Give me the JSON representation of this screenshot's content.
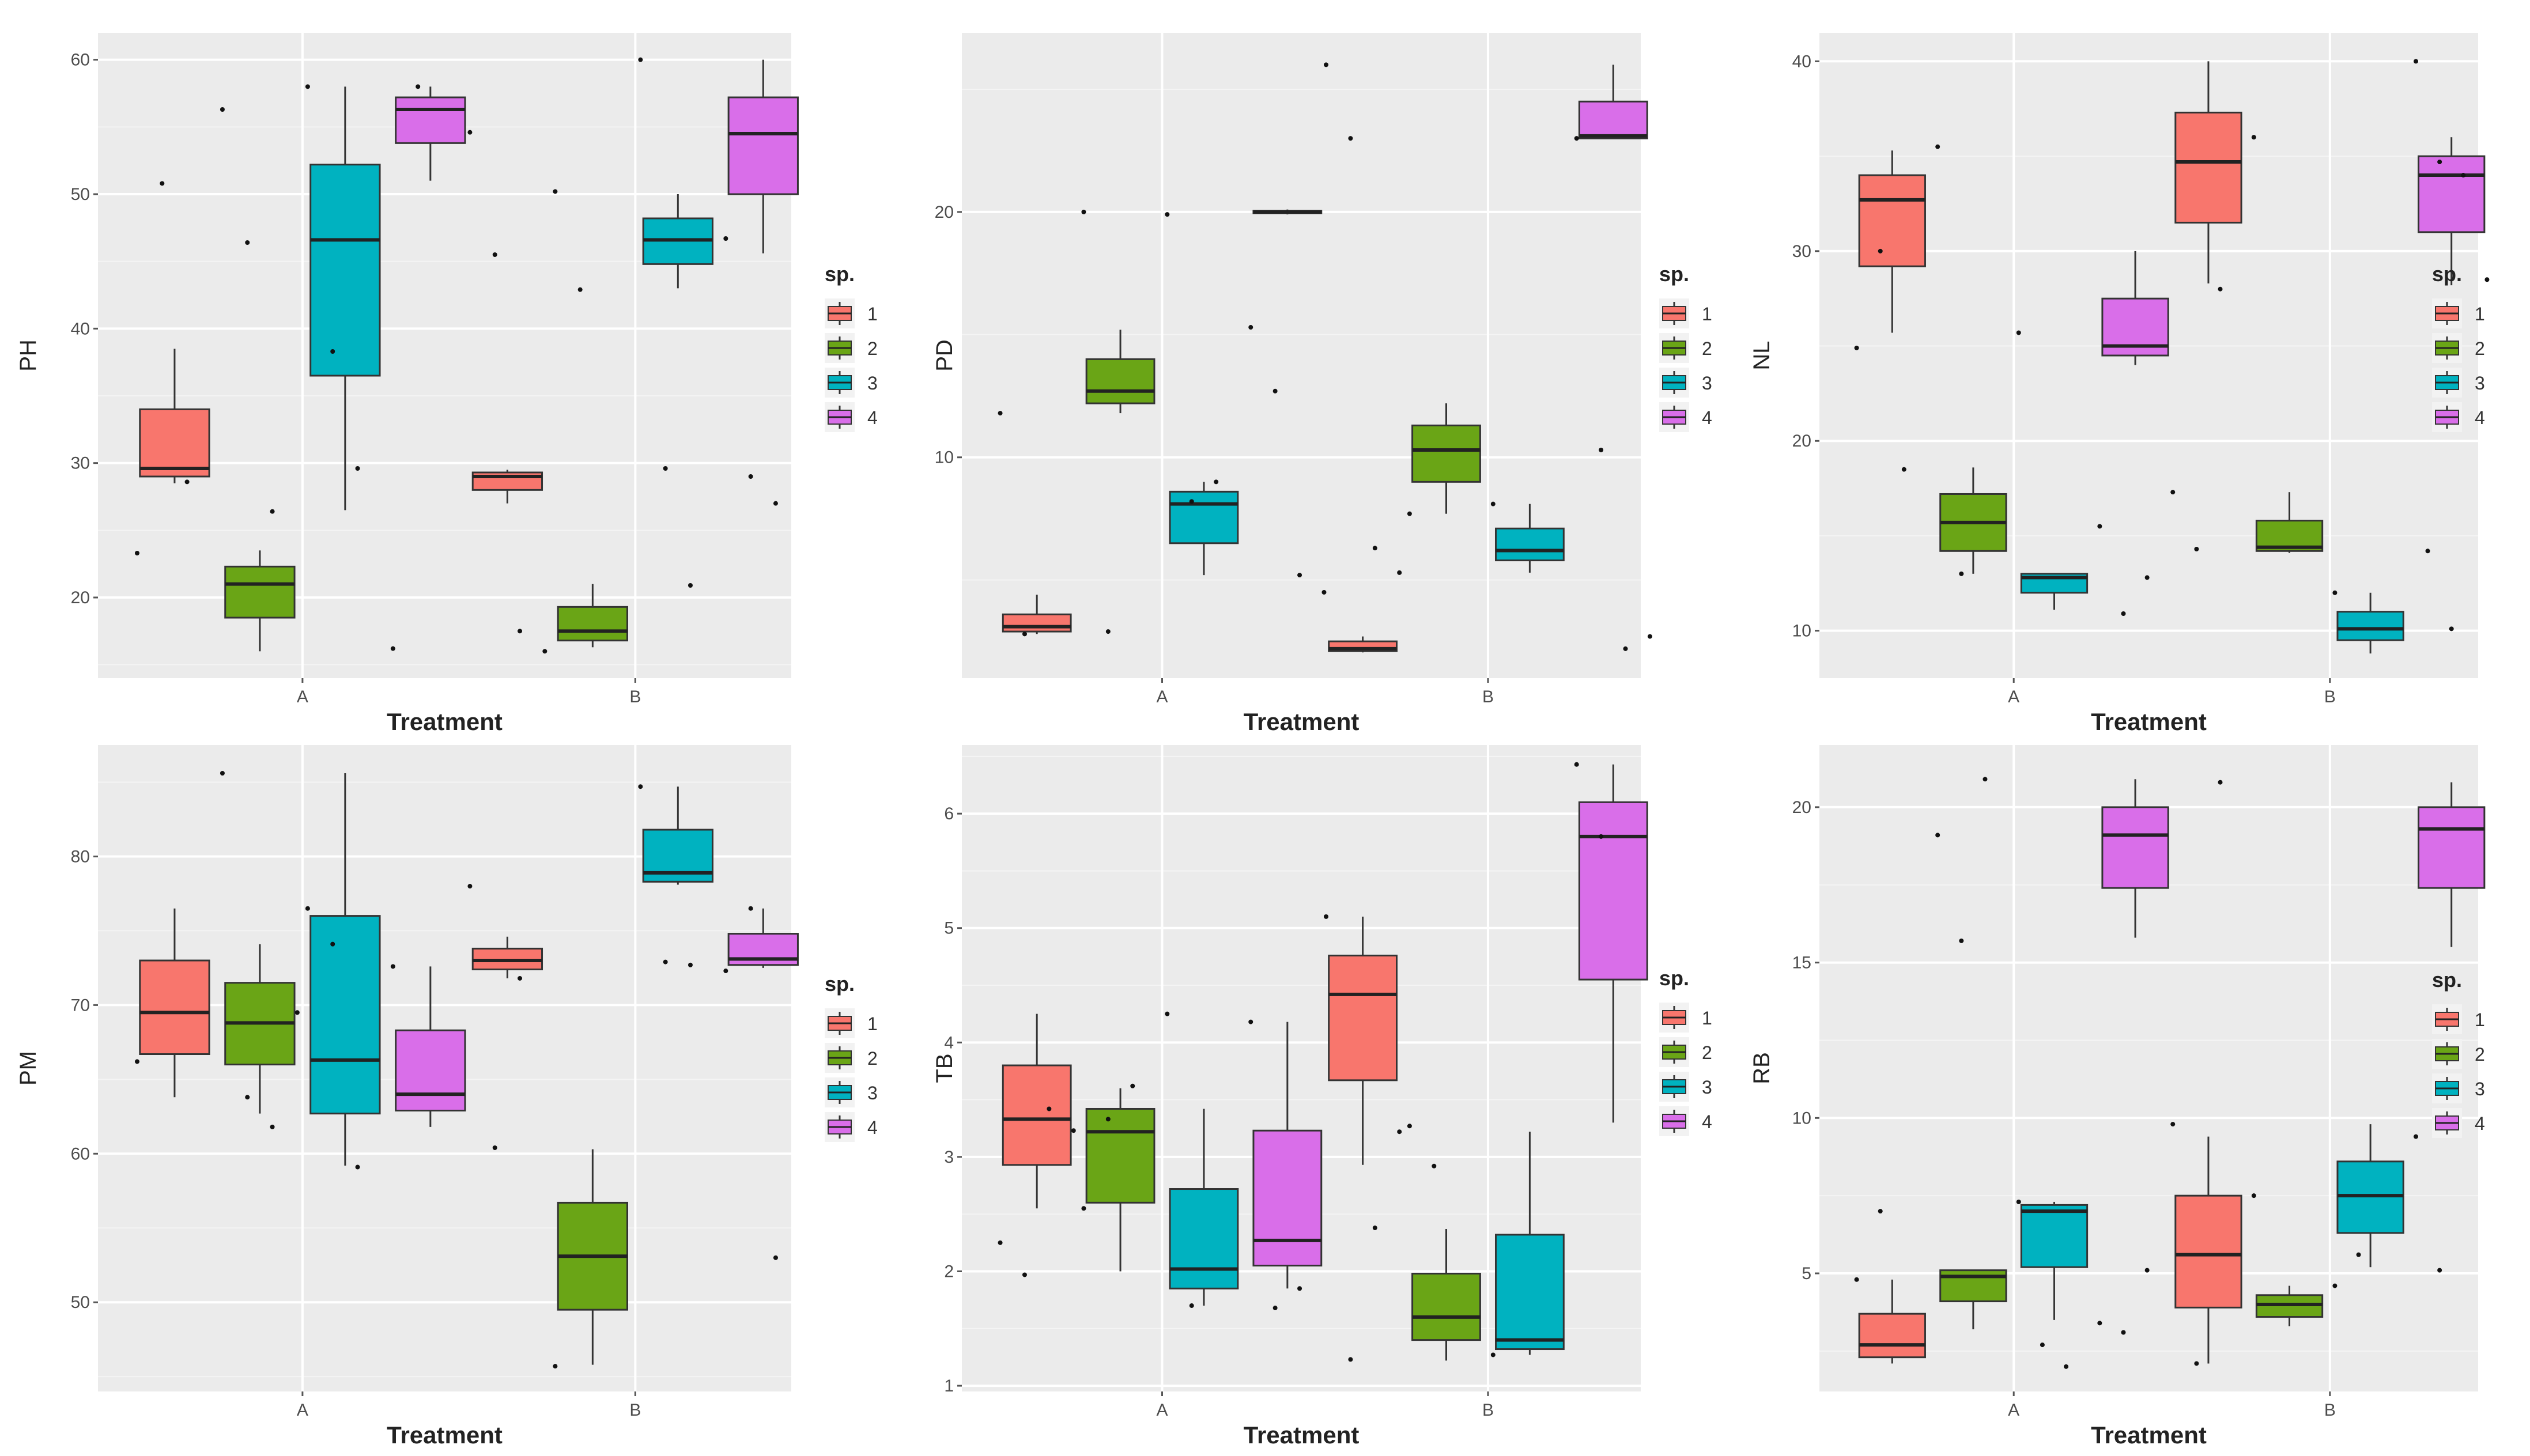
{
  "chart_data": [
    {
      "type": "box",
      "ylabel": "PH",
      "xlabel": "Treatment",
      "categories": [
        "A",
        "B"
      ],
      "ylim": [
        14,
        62
      ],
      "yticks": [
        20,
        30,
        40,
        50,
        60
      ],
      "legend": {
        "title": "sp.",
        "position": "right",
        "labels": [
          "1",
          "2",
          "3",
          "4"
        ]
      },
      "boxes": [
        {
          "treatment": "A",
          "species": "1",
          "min": 28.5,
          "q1": 29,
          "median": 29.6,
          "q3": 34,
          "max": 38.5,
          "points": [
            23.3,
            50.8,
            28.6
          ]
        },
        {
          "treatment": "A",
          "species": "2",
          "min": 16,
          "q1": 18.5,
          "median": 21,
          "q3": 22.3,
          "max": 23.5,
          "points": [
            56.3,
            46.4,
            26.4
          ]
        },
        {
          "treatment": "A",
          "species": "3",
          "min": 26.5,
          "q1": 36.5,
          "median": 46.6,
          "q3": 52.2,
          "max": 58,
          "points": [
            58,
            38.3,
            29.6
          ]
        },
        {
          "treatment": "A",
          "species": "4",
          "min": 51,
          "q1": 53.8,
          "median": 56.3,
          "q3": 57.2,
          "max": 58,
          "points": [
            16.2,
            58
          ]
        },
        {
          "treatment": "B",
          "species": "1",
          "min": 27,
          "q1": 28,
          "median": 29,
          "q3": 29.3,
          "max": 29.5,
          "points": [
            54.6,
            45.5,
            17.5,
            16
          ]
        },
        {
          "treatment": "B",
          "species": "2",
          "min": 16.3,
          "q1": 16.8,
          "median": 17.5,
          "q3": 19.3,
          "max": 21,
          "points": [
            50.2,
            42.9
          ]
        },
        {
          "treatment": "B",
          "species": "3",
          "min": 43,
          "q1": 44.8,
          "median": 46.6,
          "q3": 48.2,
          "max": 50,
          "points": [
            60,
            29.6,
            20.9
          ]
        },
        {
          "treatment": "B",
          "species": "4",
          "min": 45.6,
          "q1": 50,
          "median": 54.5,
          "q3": 57.2,
          "max": 60,
          "points": [
            46.7,
            29,
            27
          ]
        }
      ]
    },
    {
      "type": "box",
      "ylabel": "PD",
      "xlabel": "Treatment",
      "categories": [
        "A",
        "B"
      ],
      "ylim": [
        1,
        27.3
      ],
      "yticks": [
        10,
        20
      ],
      "legend": {
        "title": "sp.",
        "position": "right",
        "labels": [
          "1",
          "2",
          "3",
          "4"
        ]
      },
      "boxes": [
        {
          "treatment": "A",
          "species": "1",
          "min": 2.8,
          "q1": 2.9,
          "median": 3.1,
          "q3": 3.6,
          "max": 4.4,
          "points": [
            11.8,
            2.8
          ]
        },
        {
          "treatment": "A",
          "species": "2",
          "min": 11.8,
          "q1": 12.2,
          "median": 12.7,
          "q3": 14,
          "max": 15.2,
          "points": [
            20,
            2.9
          ]
        },
        {
          "treatment": "A",
          "species": "3",
          "min": 5.2,
          "q1": 6.5,
          "median": 8.1,
          "q3": 8.6,
          "max": 9,
          "points": [
            19.9,
            8.2,
            9
          ]
        },
        {
          "treatment": "A",
          "species": "4",
          "min": 19.9,
          "q1": 19.95,
          "median": 20,
          "q3": 20.05,
          "max": 20.1,
          "points": [
            15.3,
            12.7,
            5.2,
            4.5
          ]
        },
        {
          "treatment": "B",
          "species": "1",
          "min": 2.05,
          "q1": 2.1,
          "median": 2.2,
          "q3": 2.5,
          "max": 2.7,
          "points": [
            26,
            23,
            6.3,
            5.3
          ]
        },
        {
          "treatment": "B",
          "species": "2",
          "min": 7.7,
          "q1": 9,
          "median": 10.3,
          "q3": 11.3,
          "max": 12.2,
          "points": [
            7.7
          ]
        },
        {
          "treatment": "B",
          "species": "3",
          "min": 5.3,
          "q1": 5.8,
          "median": 6.2,
          "q3": 7.1,
          "max": 8.1,
          "points": [
            8.1
          ]
        },
        {
          "treatment": "B",
          "species": "4",
          "min": 23,
          "q1": 23,
          "median": 23.1,
          "q3": 24.5,
          "max": 26,
          "points": [
            23,
            10.3,
            2.2,
            2.7
          ]
        }
      ]
    },
    {
      "type": "box",
      "ylabel": "NL",
      "xlabel": "Treatment",
      "categories": [
        "A",
        "B"
      ],
      "ylim": [
        7.5,
        41.5
      ],
      "yticks": [
        10,
        20,
        30,
        40
      ],
      "legend": {
        "title": "sp.",
        "position": "right",
        "labels": [
          "1",
          "2",
          "3",
          "4"
        ]
      },
      "boxes": [
        {
          "treatment": "A",
          "species": "1",
          "min": 25.7,
          "q1": 29.2,
          "median": 32.7,
          "q3": 34,
          "max": 35.3,
          "points": [
            24.9,
            30,
            18.5
          ]
        },
        {
          "treatment": "A",
          "species": "2",
          "min": 13,
          "q1": 14.2,
          "median": 15.7,
          "q3": 17.2,
          "max": 18.6,
          "points": [
            35.5,
            13
          ]
        },
        {
          "treatment": "A",
          "species": "3",
          "min": 11.1,
          "q1": 12,
          "median": 12.8,
          "q3": 13,
          "max": 13,
          "points": [
            25.7
          ]
        },
        {
          "treatment": "A",
          "species": "4",
          "min": 24,
          "q1": 24.5,
          "median": 25,
          "q3": 27.5,
          "max": 30,
          "points": [
            15.5,
            10.9,
            12.8
          ]
        },
        {
          "treatment": "B",
          "species": "1",
          "min": 28.3,
          "q1": 31.5,
          "median": 34.7,
          "q3": 37.3,
          "max": 40,
          "points": [
            17.3,
            14.3,
            28
          ]
        },
        {
          "treatment": "B",
          "species": "2",
          "min": 14.1,
          "q1": 14.2,
          "median": 14.4,
          "q3": 15.8,
          "max": 17.3,
          "points": [
            36
          ]
        },
        {
          "treatment": "B",
          "species": "3",
          "min": 8.8,
          "q1": 9.5,
          "median": 10.1,
          "q3": 11,
          "max": 12,
          "points": [
            12
          ]
        },
        {
          "treatment": "B",
          "species": "4",
          "min": 28.2,
          "q1": 31,
          "median": 34,
          "q3": 35,
          "max": 36,
          "points": [
            40,
            34.7,
            34,
            28.5,
            14.2,
            10.1
          ]
        }
      ]
    },
    {
      "type": "box",
      "ylabel": "PM",
      "xlabel": "Treatment",
      "categories": [
        "A",
        "B"
      ],
      "ylim": [
        44,
        87.5
      ],
      "yticks": [
        50,
        60,
        70,
        80
      ],
      "legend": {
        "title": "sp.",
        "position": "right",
        "labels": [
          "1",
          "2",
          "3",
          "4"
        ]
      },
      "boxes": [
        {
          "treatment": "A",
          "species": "1",
          "min": 63.8,
          "q1": 66.7,
          "median": 69.5,
          "q3": 73,
          "max": 76.5,
          "points": [
            66.2
          ]
        },
        {
          "treatment": "A",
          "species": "2",
          "min": 62.7,
          "q1": 66,
          "median": 68.8,
          "q3": 71.5,
          "max": 74.1,
          "points": [
            85.6,
            63.8,
            61.8,
            69.5
          ]
        },
        {
          "treatment": "A",
          "species": "3",
          "min": 59.2,
          "q1": 62.7,
          "median": 66.3,
          "q3": 76,
          "max": 85.6,
          "points": [
            76.5,
            74.1,
            59.1
          ]
        },
        {
          "treatment": "A",
          "species": "4",
          "min": 61.8,
          "q1": 62.9,
          "median": 64,
          "q3": 68.3,
          "max": 72.6,
          "points": [
            72.6
          ]
        },
        {
          "treatment": "B",
          "species": "1",
          "min": 71.8,
          "q1": 72.4,
          "median": 73,
          "q3": 73.8,
          "max": 74.6,
          "points": [
            78,
            60.4,
            71.8
          ]
        },
        {
          "treatment": "B",
          "species": "2",
          "min": 45.8,
          "q1": 49.5,
          "median": 53.1,
          "q3": 56.7,
          "max": 60.3,
          "points": [
            45.7
          ]
        },
        {
          "treatment": "B",
          "species": "3",
          "min": 78.1,
          "q1": 78.3,
          "median": 78.9,
          "q3": 81.8,
          "max": 84.7,
          "points": [
            84.7,
            72.9,
            72.7
          ]
        },
        {
          "treatment": "B",
          "species": "4",
          "min": 72.5,
          "q1": 72.7,
          "median": 73.1,
          "q3": 74.8,
          "max": 76.5,
          "points": [
            72.3,
            76.5,
            53
          ]
        }
      ]
    },
    {
      "type": "box",
      "ylabel": "TB",
      "xlabel": "Treatment",
      "categories": [
        "A",
        "B"
      ],
      "ylim": [
        0.95,
        6.6
      ],
      "yticks": [
        1,
        2,
        3,
        4,
        5,
        6
      ],
      "legend": {
        "title": "sp.",
        "position": "right",
        "labels": [
          "1",
          "2",
          "3",
          "4"
        ]
      },
      "boxes": [
        {
          "treatment": "A",
          "species": "1",
          "min": 2.55,
          "q1": 2.93,
          "median": 3.33,
          "q3": 3.8,
          "max": 4.25,
          "points": [
            2.25,
            1.97,
            3.42,
            3.23
          ]
        },
        {
          "treatment": "A",
          "species": "2",
          "min": 2,
          "q1": 2.6,
          "median": 3.22,
          "q3": 3.42,
          "max": 3.6,
          "points": [
            2.55,
            3.33,
            3.62
          ]
        },
        {
          "treatment": "A",
          "species": "3",
          "min": 1.7,
          "q1": 1.85,
          "median": 2.02,
          "q3": 2.72,
          "max": 3.42,
          "points": [
            4.25,
            1.7
          ]
        },
        {
          "treatment": "A",
          "species": "4",
          "min": 1.85,
          "q1": 2.05,
          "median": 2.27,
          "q3": 3.23,
          "max": 4.18,
          "points": [
            4.18,
            1.68,
            1.85
          ]
        },
        {
          "treatment": "B",
          "species": "1",
          "min": 2.93,
          "q1": 3.67,
          "median": 4.42,
          "q3": 4.76,
          "max": 5.1,
          "points": [
            5.1,
            1.23,
            2.38,
            3.22
          ]
        },
        {
          "treatment": "B",
          "species": "2",
          "min": 1.22,
          "q1": 1.4,
          "median": 1.6,
          "q3": 1.98,
          "max": 2.37,
          "points": [
            3.27,
            2.92
          ]
        },
        {
          "treatment": "B",
          "species": "3",
          "min": 1.27,
          "q1": 1.32,
          "median": 1.4,
          "q3": 2.32,
          "max": 3.22,
          "points": [
            1.27
          ]
        },
        {
          "treatment": "B",
          "species": "4",
          "min": 3.3,
          "q1": 4.55,
          "median": 5.8,
          "q3": 6.1,
          "max": 6.43,
          "points": [
            6.43,
            5.8
          ]
        }
      ]
    },
    {
      "type": "box",
      "ylabel": "RB",
      "xlabel": "Treatment",
      "categories": [
        "A",
        "B"
      ],
      "ylim": [
        1.2,
        22
      ],
      "yticks": [
        5,
        10,
        15,
        20
      ],
      "legend": {
        "title": "sp.",
        "position": "right",
        "labels": [
          "1",
          "2",
          "3",
          "4"
        ]
      },
      "boxes": [
        {
          "treatment": "A",
          "species": "1",
          "min": 2.1,
          "q1": 2.3,
          "median": 2.7,
          "q3": 3.7,
          "max": 4.8,
          "points": [
            4.8,
            7
          ]
        },
        {
          "treatment": "A",
          "species": "2",
          "min": 3.2,
          "q1": 4.1,
          "median": 4.9,
          "q3": 5.1,
          "max": 5.1,
          "points": [
            19.1,
            15.7,
            20.9
          ]
        },
        {
          "treatment": "A",
          "species": "3",
          "min": 3.5,
          "q1": 5.2,
          "median": 7,
          "q3": 7.2,
          "max": 7.3,
          "points": [
            7.3,
            2.7,
            2
          ]
        },
        {
          "treatment": "A",
          "species": "4",
          "min": 15.8,
          "q1": 17.4,
          "median": 19.1,
          "q3": 20,
          "max": 20.9,
          "points": [
            3.4,
            3.1,
            5.1
          ]
        },
        {
          "treatment": "B",
          "species": "1",
          "min": 2.1,
          "q1": 3.9,
          "median": 5.6,
          "q3": 7.5,
          "max": 9.4,
          "points": [
            9.8,
            2.1,
            20.8
          ]
        },
        {
          "treatment": "B",
          "species": "2",
          "min": 3.3,
          "q1": 3.6,
          "median": 4,
          "q3": 4.3,
          "max": 4.6,
          "points": [
            7.5
          ]
        },
        {
          "treatment": "B",
          "species": "3",
          "min": 5.2,
          "q1": 6.3,
          "median": 7.5,
          "q3": 8.6,
          "max": 9.8,
          "points": [
            4.6,
            5.6
          ]
        },
        {
          "treatment": "B",
          "species": "4",
          "min": 15.5,
          "q1": 17.4,
          "median": 19.3,
          "q3": 20,
          "max": 20.8,
          "points": [
            9.4,
            5.1
          ]
        }
      ]
    }
  ],
  "colors": {
    "panel_bg": "#ebebeb",
    "grid_major": "#ffffff",
    "grid_minor": "#f4f4f4",
    "whisker": "#333333",
    "point": "#111111",
    "species": {
      "1": "#f8766d",
      "2": "#6aa516",
      "3": "#00b2c0",
      "4": "#d96ee9"
    }
  }
}
